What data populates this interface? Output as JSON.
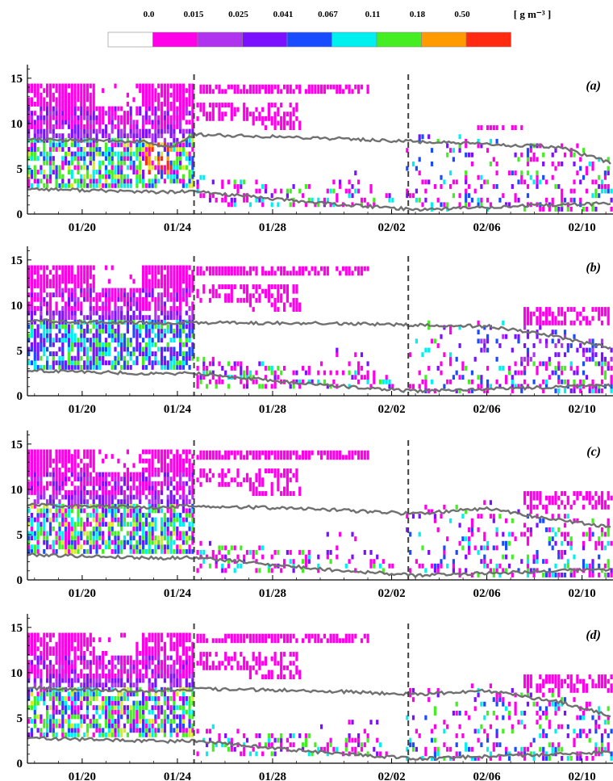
{
  "colors": {
    "scale": [
      "#ffffff",
      "#ff00e8",
      "#b033f0",
      "#7a10ff",
      "#1a4cff",
      "#00f0f0",
      "#44ee22",
      "#ff9a00",
      "#ff2a10"
    ],
    "layer_line": "#707070",
    "dashed_line": "#404040"
  },
  "colorbar": {
    "boundaries": [
      "0.0",
      "0.015",
      "0.025",
      "0.041",
      "0.067",
      "0.11",
      "0.18",
      "0.50"
    ],
    "unit": "[ g m⁻³ ]"
  },
  "chart_data": [
    {
      "type": "heatmap",
      "panel_label": "(a)",
      "x_tick_labels": [
        "01/20",
        "01/24",
        "01/28",
        "02/02",
        "02/06",
        "02/10"
      ],
      "y_tick_labels": [
        "0",
        "5",
        "10",
        "15"
      ],
      "ylim": [
        0,
        16.5
      ],
      "xlim_days": [
        -2.3,
        22.3
      ],
      "dashed_lines_at": [
        "01/24 + 0.7 d",
        "02/02 + 0.7 d"
      ],
      "upper_boundary_km": [
        [
          -2.3,
          8.3
        ],
        [
          2.5,
          8.0
        ],
        [
          3.7,
          7.3
        ],
        [
          4.7,
          8.8
        ],
        [
          10,
          8.4
        ],
        [
          14,
          8.0
        ],
        [
          20,
          7.4
        ],
        [
          22.3,
          5.6
        ]
      ],
      "lower_boundary_km": [
        [
          -2.3,
          2.8
        ],
        [
          3.5,
          2.4
        ],
        [
          4.7,
          2.5
        ],
        [
          10,
          1.2
        ],
        [
          14,
          0.5
        ],
        [
          22.3,
          1.2
        ]
      ]
    },
    {
      "type": "heatmap",
      "panel_label": "(b)",
      "x_tick_labels": [
        "01/20",
        "01/24",
        "01/28",
        "02/02",
        "02/06",
        "02/10"
      ],
      "y_tick_labels": [
        "0",
        "5",
        "10",
        "15"
      ],
      "ylim": [
        0,
        16.5
      ],
      "xlim_days": [
        -2.3,
        22.3
      ],
      "dashed_lines_at": [
        "01/24 + 0.7 d",
        "02/02 + 0.7 d"
      ],
      "upper_boundary_km": [
        [
          -2.3,
          8.3
        ],
        [
          3.0,
          8.0
        ],
        [
          4.7,
          8.1
        ],
        [
          10,
          8.0
        ],
        [
          14,
          7.8
        ],
        [
          17,
          7.7
        ],
        [
          20,
          6.5
        ],
        [
          22.3,
          5.2
        ]
      ],
      "lower_boundary_km": [
        [
          -2.3,
          2.8
        ],
        [
          3.5,
          2.4
        ],
        [
          4.7,
          2.5
        ],
        [
          10,
          1.2
        ],
        [
          14,
          0.5
        ],
        [
          22.3,
          1.2
        ]
      ]
    },
    {
      "type": "heatmap",
      "panel_label": "(c)",
      "x_tick_labels": [
        "01/20",
        "01/24",
        "01/28",
        "02/02",
        "02/06",
        "02/10"
      ],
      "y_tick_labels": [
        "0",
        "5",
        "10",
        "15"
      ],
      "ylim": [
        0,
        16.5
      ],
      "xlim_days": [
        -2.3,
        22.3
      ],
      "dashed_lines_at": [
        "01/24 + 0.7 d",
        "02/02 + 0.7 d"
      ],
      "upper_boundary_km": [
        [
          -2.3,
          8.3
        ],
        [
          3.0,
          8.0
        ],
        [
          4.7,
          8.2
        ],
        [
          10,
          7.8
        ],
        [
          14,
          7.3
        ],
        [
          17,
          7.9
        ],
        [
          19,
          7.0
        ],
        [
          22.3,
          5.8
        ]
      ],
      "lower_boundary_km": [
        [
          -2.3,
          2.8
        ],
        [
          3.5,
          2.4
        ],
        [
          4.7,
          2.5
        ],
        [
          10,
          1.2
        ],
        [
          14,
          0.5
        ],
        [
          22.3,
          1.2
        ]
      ]
    },
    {
      "type": "heatmap",
      "panel_label": "(d)",
      "x_tick_labels": [
        "01/20",
        "01/24",
        "01/28",
        "02/02",
        "02/06",
        "02/10"
      ],
      "y_tick_labels": [
        "0",
        "5",
        "10",
        "15"
      ],
      "ylim": [
        0,
        16.5
      ],
      "xlim_days": [
        -2.3,
        22.3
      ],
      "dashed_lines_at": [
        "01/24 + 0.7 d",
        "02/02 + 0.7 d"
      ],
      "upper_boundary_km": [
        [
          -2.3,
          8.3
        ],
        [
          3.0,
          8.0
        ],
        [
          4.7,
          8.2
        ],
        [
          10,
          8.0
        ],
        [
          14,
          7.6
        ],
        [
          17,
          8.0
        ],
        [
          20,
          6.8
        ],
        [
          22.3,
          5.2
        ]
      ],
      "lower_boundary_km": [
        [
          -2.3,
          2.8
        ],
        [
          3.5,
          2.4
        ],
        [
          4.7,
          2.5
        ],
        [
          10,
          1.2
        ],
        [
          14,
          0.5
        ],
        [
          22.3,
          1.2
        ]
      ]
    }
  ]
}
